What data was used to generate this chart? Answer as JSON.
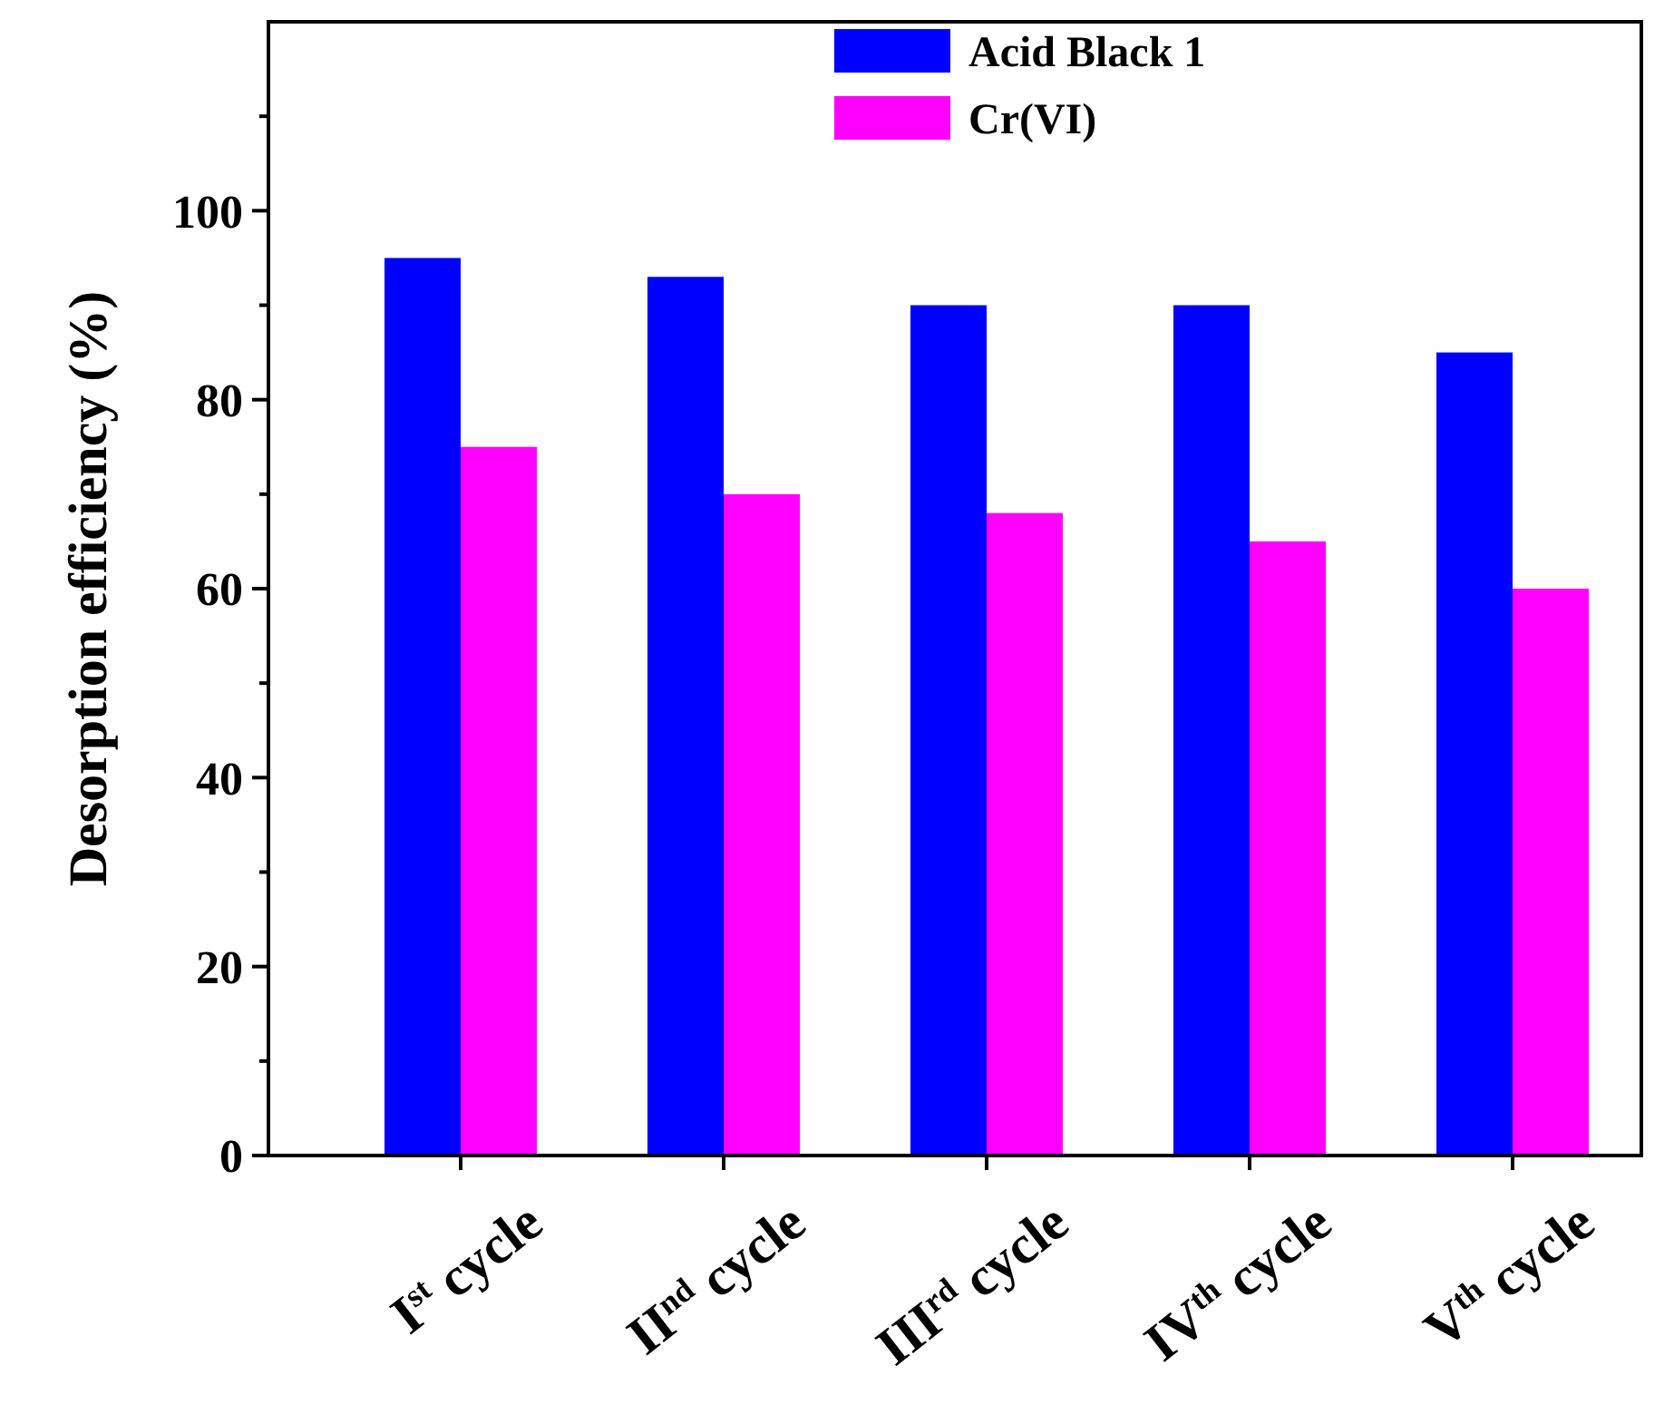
{
  "chart_data": {
    "type": "bar",
    "ylabel": "Desorption efficiency (%)",
    "categories": [
      "I$^{st}$ cycle",
      "II$^{nd}$ cycle",
      "III$^{rd}$ cycle",
      "IV$^{th}$ cycle",
      "V$^{th}$ cycle"
    ],
    "series": [
      {
        "name": "Acid Black 1",
        "color": "#0000ff",
        "values": [
          95,
          93,
          90,
          90,
          85
        ]
      },
      {
        "name": "Cr(VI)",
        "color": "#ff00ff",
        "values": [
          75,
          70,
          68,
          65,
          60
        ]
      }
    ],
    "ylim": [
      0,
      120
    ],
    "yticks": [
      0,
      {
        "value": 10,
        "label": null
      },
      20,
      {
        "value": 30,
        "label": null
      },
      40,
      {
        "value": 50,
        "label": null
      },
      60,
      {
        "value": 70,
        "label": null
      },
      80,
      {
        "value": 90,
        "label": null
      },
      100,
      {
        "value": 110,
        "label": null
      }
    ],
    "grid": false,
    "legend": "top"
  }
}
